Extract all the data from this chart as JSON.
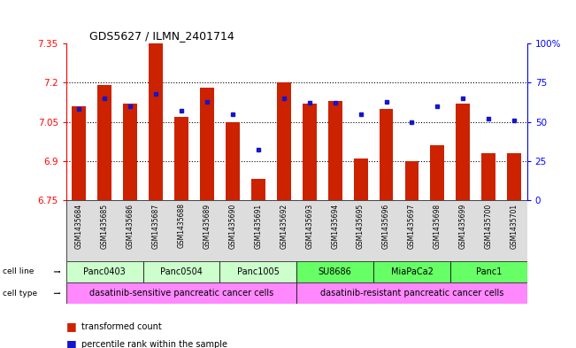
{
  "title": "GDS5627 / ILMN_2401714",
  "samples": [
    "GSM1435684",
    "GSM1435685",
    "GSM1435686",
    "GSM1435687",
    "GSM1435688",
    "GSM1435689",
    "GSM1435690",
    "GSM1435691",
    "GSM1435692",
    "GSM1435693",
    "GSM1435694",
    "GSM1435695",
    "GSM1435696",
    "GSM1435697",
    "GSM1435698",
    "GSM1435699",
    "GSM1435700",
    "GSM1435701"
  ],
  "transformed_counts": [
    7.11,
    7.19,
    7.12,
    7.37,
    7.07,
    7.18,
    7.05,
    6.83,
    7.2,
    7.12,
    7.13,
    6.91,
    7.1,
    6.9,
    6.96,
    7.12,
    6.93,
    6.93
  ],
  "percentile_ranks": [
    58,
    65,
    60,
    68,
    57,
    63,
    55,
    32,
    65,
    62,
    62,
    55,
    63,
    50,
    60,
    65,
    52,
    51
  ],
  "ymin": 6.75,
  "ymax": 7.35,
  "yticks": [
    6.75,
    6.9,
    7.05,
    7.2,
    7.35
  ],
  "ytick_labels": [
    "6.75",
    "6.9",
    "7.05",
    "7.2",
    "7.35"
  ],
  "bar_color": "#CC2200",
  "dot_color": "#1515CC",
  "cell_line_groups": [
    {
      "label": "Panc0403",
      "start": 0,
      "end": 2,
      "color": "#CCFFCC"
    },
    {
      "label": "Panc0504",
      "start": 3,
      "end": 5,
      "color": "#CCFFCC"
    },
    {
      "label": "Panc1005",
      "start": 6,
      "end": 8,
      "color": "#CCFFCC"
    },
    {
      "label": "SU8686",
      "start": 9,
      "end": 11,
      "color": "#66FF66"
    },
    {
      "label": "MiaPaCa2",
      "start": 12,
      "end": 14,
      "color": "#66FF66"
    },
    {
      "label": "Panc1",
      "start": 15,
      "end": 17,
      "color": "#66FF66"
    }
  ],
  "cell_type_groups": [
    {
      "label": "dasatinib-sensitive pancreatic cancer cells",
      "start": 0,
      "end": 8,
      "color": "#FF88FF"
    },
    {
      "label": "dasatinib-resistant pancreatic cancer cells",
      "start": 9,
      "end": 17,
      "color": "#FF88FF"
    }
  ],
  "right_yticks": [
    0,
    25,
    50,
    75,
    100
  ],
  "right_yticklabels": [
    "0",
    "25",
    "50",
    "75",
    "100%"
  ],
  "gridlines": [
    6.9,
    7.05,
    7.2
  ]
}
